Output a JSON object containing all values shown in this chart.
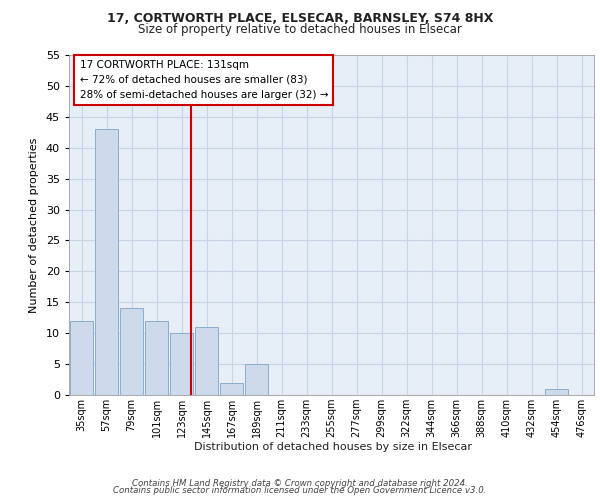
{
  "title_line1": "17, CORTWORTH PLACE, ELSECAR, BARNSLEY, S74 8HX",
  "title_line2": "Size of property relative to detached houses in Elsecar",
  "xlabel": "Distribution of detached houses by size in Elsecar",
  "ylabel": "Number of detached properties",
  "bins": [
    "35sqm",
    "57sqm",
    "79sqm",
    "101sqm",
    "123sqm",
    "145sqm",
    "167sqm",
    "189sqm",
    "211sqm",
    "233sqm",
    "255sqm",
    "277sqm",
    "299sqm",
    "322sqm",
    "344sqm",
    "366sqm",
    "388sqm",
    "410sqm",
    "432sqm",
    "454sqm",
    "476sqm"
  ],
  "bar_values": [
    12,
    43,
    14,
    12,
    10,
    11,
    2,
    5,
    0,
    0,
    0,
    0,
    0,
    0,
    0,
    0,
    0,
    0,
    0,
    1,
    0
  ],
  "bar_color": "#cddaeb",
  "bar_edge_color": "#8aaecf",
  "grid_color": "#c8d4e4",
  "annotation_line1": "17 CORTWORTH PLACE: 131sqm",
  "annotation_line2": "← 72% of detached houses are smaller (83)",
  "annotation_line3": "28% of semi-detached houses are larger (32) →",
  "annotation_box_color": "#ffffff",
  "annotation_box_edge": "#cc0000",
  "vline_color": "#cc0000",
  "ylim": [
    0,
    55
  ],
  "yticks": [
    0,
    5,
    10,
    15,
    20,
    25,
    30,
    35,
    40,
    45,
    50,
    55
  ],
  "footer_line1": "Contains HM Land Registry data © Crown copyright and database right 2024.",
  "footer_line2": "Contains public sector information licensed under the Open Government Licence v3.0.",
  "plot_bg_color": "#e8eef8"
}
